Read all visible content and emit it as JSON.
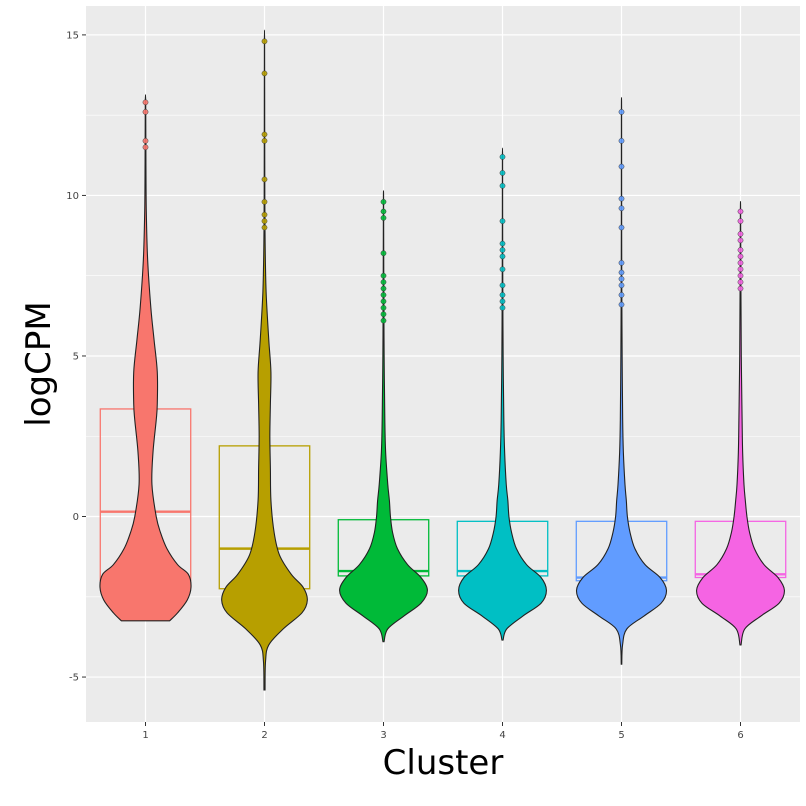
{
  "chart_data": {
    "type": "violin",
    "xlabel": "Cluster",
    "ylabel": "logCPM",
    "ylim": [
      -6.4,
      15.9
    ],
    "yticks": [
      -5,
      0,
      5,
      10,
      15
    ],
    "ytick_labels": [
      "-5",
      "0",
      "5",
      "10",
      "15"
    ],
    "categories": [
      "1",
      "2",
      "3",
      "4",
      "5",
      "6"
    ],
    "grid": true,
    "legend": "none",
    "series": [
      {
        "category": "1",
        "color": "#F8766D",
        "box": {
          "q1": -2.0,
          "median": 0.15,
          "q3": 3.35
        },
        "violin": {
          "min": -3.25,
          "max": 12.9,
          "profile": [
            [
              -3.25,
              0.45
            ],
            [
              -3.0,
              0.6
            ],
            [
              -2.6,
              0.78
            ],
            [
              -2.2,
              0.85
            ],
            [
              -1.8,
              0.8
            ],
            [
              -1.5,
              0.6
            ],
            [
              -1.0,
              0.4
            ],
            [
              -0.5,
              0.28
            ],
            [
              0.0,
              0.2
            ],
            [
              1.0,
              0.12
            ],
            [
              2.0,
              0.14
            ],
            [
              3.0,
              0.2
            ],
            [
              3.5,
              0.22
            ],
            [
              4.5,
              0.22
            ],
            [
              5.5,
              0.16
            ],
            [
              6.5,
              0.1
            ],
            [
              8.0,
              0.04
            ],
            [
              9.5,
              0.015
            ],
            [
              11.0,
              0.008
            ],
            [
              12.9,
              0.004
            ]
          ]
        },
        "outliers": [
          12.9,
          12.6,
          11.7,
          11.5
        ]
      },
      {
        "category": "2",
        "color": "#B79F00",
        "box": {
          "q1": -2.25,
          "median": -1.0,
          "q3": 2.2
        },
        "violin": {
          "min": -5.4,
          "max": 14.8,
          "profile": [
            [
              -5.4,
              0.01
            ],
            [
              -4.5,
              0.02
            ],
            [
              -4.0,
              0.08
            ],
            [
              -3.5,
              0.35
            ],
            [
              -3.0,
              0.7
            ],
            [
              -2.6,
              0.8
            ],
            [
              -2.2,
              0.72
            ],
            [
              -1.8,
              0.5
            ],
            [
              -1.2,
              0.28
            ],
            [
              -0.5,
              0.18
            ],
            [
              0.5,
              0.12
            ],
            [
              1.5,
              0.11
            ],
            [
              2.5,
              0.1
            ],
            [
              3.5,
              0.11
            ],
            [
              4.5,
              0.12
            ],
            [
              5.5,
              0.08
            ],
            [
              7.0,
              0.03
            ],
            [
              8.5,
              0.012
            ],
            [
              10.0,
              0.006
            ],
            [
              12.0,
              0.004
            ],
            [
              14.8,
              0.002
            ]
          ]
        },
        "outliers": [
          14.8,
          13.8,
          11.9,
          11.7,
          10.5,
          9.8,
          9.4,
          9.2,
          9.0
        ]
      },
      {
        "category": "3",
        "color": "#00BA38",
        "box": {
          "q1": -1.85,
          "median": -1.7,
          "q3": -0.1
        },
        "violin": {
          "min": -3.9,
          "max": 9.8,
          "profile": [
            [
              -3.9,
              0.01
            ],
            [
              -3.5,
              0.08
            ],
            [
              -3.1,
              0.38
            ],
            [
              -2.7,
              0.7
            ],
            [
              -2.3,
              0.82
            ],
            [
              -1.9,
              0.7
            ],
            [
              -1.5,
              0.45
            ],
            [
              -1.0,
              0.26
            ],
            [
              -0.5,
              0.17
            ],
            [
              0.0,
              0.13
            ],
            [
              0.5,
              0.11
            ],
            [
              1.0,
              0.08
            ],
            [
              2.0,
              0.04
            ],
            [
              3.0,
              0.025
            ],
            [
              5.0,
              0.012
            ],
            [
              7.0,
              0.006
            ],
            [
              9.8,
              0.002
            ]
          ]
        },
        "outliers": [
          9.8,
          9.5,
          9.3,
          8.2,
          7.5,
          7.3,
          7.1,
          6.9,
          6.7,
          6.5,
          6.3,
          6.1
        ]
      },
      {
        "category": "4",
        "color": "#00BFC4",
        "box": {
          "q1": -1.85,
          "median": -1.7,
          "q3": -0.15
        },
        "violin": {
          "min": -3.85,
          "max": 11.2,
          "profile": [
            [
              -3.85,
              0.01
            ],
            [
              -3.5,
              0.08
            ],
            [
              -3.1,
              0.38
            ],
            [
              -2.7,
              0.72
            ],
            [
              -2.3,
              0.82
            ],
            [
              -1.9,
              0.72
            ],
            [
              -1.5,
              0.45
            ],
            [
              -1.0,
              0.26
            ],
            [
              -0.5,
              0.17
            ],
            [
              0.0,
              0.12
            ],
            [
              0.5,
              0.1
            ],
            [
              1.0,
              0.07
            ],
            [
              2.0,
              0.04
            ],
            [
              3.0,
              0.025
            ],
            [
              5.0,
              0.012
            ],
            [
              7.0,
              0.006
            ],
            [
              9.0,
              0.003
            ],
            [
              11.2,
              0.002
            ]
          ]
        },
        "outliers": [
          11.2,
          10.7,
          10.3,
          9.2,
          8.5,
          8.3,
          8.1,
          7.7,
          7.2,
          6.9,
          6.7,
          6.5
        ]
      },
      {
        "category": "5",
        "color": "#619CFF",
        "box": {
          "q1": -2.0,
          "median": -1.9,
          "q3": -0.15
        },
        "violin": {
          "min": -4.6,
          "max": 12.6,
          "profile": [
            [
              -4.6,
              0.005
            ],
            [
              -4.0,
              0.02
            ],
            [
              -3.5,
              0.1
            ],
            [
              -3.1,
              0.42
            ],
            [
              -2.7,
              0.74
            ],
            [
              -2.3,
              0.84
            ],
            [
              -1.9,
              0.72
            ],
            [
              -1.5,
              0.44
            ],
            [
              -1.0,
              0.25
            ],
            [
              -0.5,
              0.16
            ],
            [
              0.0,
              0.11
            ],
            [
              0.5,
              0.09
            ],
            [
              1.0,
              0.065
            ],
            [
              2.0,
              0.035
            ],
            [
              3.0,
              0.022
            ],
            [
              5.0,
              0.012
            ],
            [
              7.0,
              0.006
            ],
            [
              9.0,
              0.003
            ],
            [
              12.6,
              0.002
            ]
          ]
        },
        "outliers": [
          12.6,
          11.7,
          10.9,
          9.9,
          9.6,
          9.0,
          7.9,
          7.6,
          7.4,
          7.2,
          6.9,
          6.6
        ]
      },
      {
        "category": "6",
        "color": "#F564E3",
        "box": {
          "q1": -1.9,
          "median": -1.8,
          "q3": -0.15
        },
        "violin": {
          "min": -4.0,
          "max": 9.5,
          "profile": [
            [
              -4.0,
              0.01
            ],
            [
              -3.5,
              0.08
            ],
            [
              -3.1,
              0.38
            ],
            [
              -2.7,
              0.72
            ],
            [
              -2.3,
              0.82
            ],
            [
              -1.9,
              0.7
            ],
            [
              -1.5,
              0.44
            ],
            [
              -1.0,
              0.26
            ],
            [
              -0.5,
              0.17
            ],
            [
              0.0,
              0.12
            ],
            [
              0.5,
              0.09
            ],
            [
              1.0,
              0.065
            ],
            [
              2.0,
              0.04
            ],
            [
              3.0,
              0.03
            ],
            [
              4.0,
              0.022
            ],
            [
              5.0,
              0.015
            ],
            [
              7.0,
              0.008
            ],
            [
              9.5,
              0.002
            ]
          ]
        },
        "outliers": [
          9.5,
          9.2,
          8.8,
          8.6,
          8.3,
          8.1,
          7.9,
          7.7,
          7.5,
          7.3,
          7.1
        ]
      }
    ]
  }
}
